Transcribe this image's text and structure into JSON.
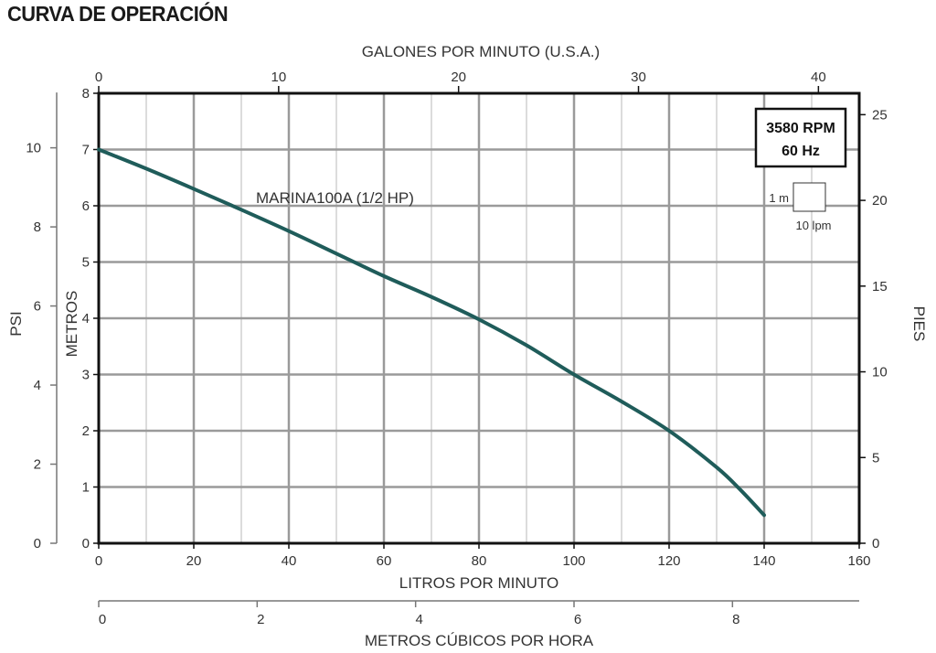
{
  "title": "CURVA DE OPERACIÓN",
  "chart_data": {
    "type": "line",
    "title": "CURVA DE OPERACIÓN",
    "xlabel": "LITROS POR MINUTO",
    "ylabel": "METROS",
    "xlim": [
      0,
      160
    ],
    "ylim": [
      0,
      8
    ],
    "x_ticks": [
      0,
      20,
      40,
      60,
      80,
      100,
      120,
      140,
      160
    ],
    "y_ticks": [
      0,
      1,
      2,
      3,
      4,
      5,
      6,
      7,
      8
    ],
    "grid": true,
    "top_axis": {
      "label": "GALONES POR MINUTO (U.S.A.)",
      "ticks": [
        0,
        10,
        20,
        30,
        40
      ]
    },
    "left_outer_axis": {
      "label": "PSI",
      "ticks": [
        0,
        2,
        4,
        6,
        8,
        10
      ]
    },
    "right_axis": {
      "label": "PIES",
      "ticks": [
        0,
        5,
        10,
        15,
        20,
        25
      ]
    },
    "bottom_outer_axis": {
      "label": "METROS CÚBICOS POR HORA",
      "ticks": [
        0,
        2,
        4,
        6,
        8
      ]
    },
    "series": [
      {
        "name": "MARINA100A (1/2 HP)",
        "color": "#1f5c5a",
        "x": [
          0,
          10,
          20,
          30,
          40,
          50,
          60,
          70,
          80,
          90,
          100,
          110,
          120,
          130,
          135,
          140
        ],
        "y": [
          7.0,
          6.66,
          6.3,
          5.93,
          5.55,
          5.15,
          4.75,
          4.38,
          3.98,
          3.52,
          3.0,
          2.52,
          2.0,
          1.35,
          0.95,
          0.5
        ]
      }
    ],
    "info_box": {
      "line1": "3580 RPM",
      "line2": "60 Hz"
    },
    "scale_legend": {
      "vertical": "1 m",
      "horizontal": "10 lpm"
    }
  }
}
